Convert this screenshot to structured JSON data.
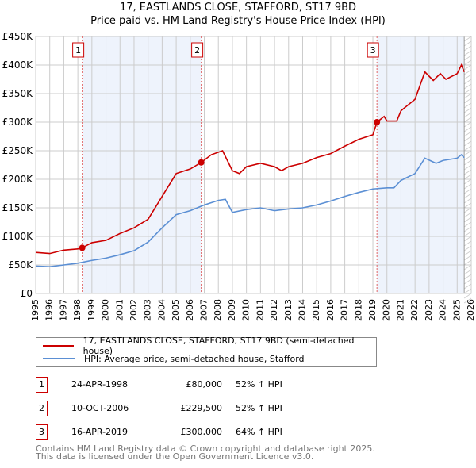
{
  "chart_data": {
    "type": "line",
    "title": "17, EASTLANDS CLOSE, STAFFORD, ST17 9BD",
    "subtitle": "Price paid vs. HM Land Registry's House Price Index (HPI)",
    "xlim": [
      1995,
      2026
    ],
    "ylim": [
      0,
      450000
    ],
    "x_ticks": [
      "1995",
      "1996",
      "1997",
      "1998",
      "1999",
      "2000",
      "2001",
      "2002",
      "2003",
      "2004",
      "2005",
      "2006",
      "2007",
      "2008",
      "2009",
      "2010",
      "2011",
      "2012",
      "2013",
      "2014",
      "2015",
      "2016",
      "2017",
      "2018",
      "2019",
      "2020",
      "2021",
      "2022",
      "2023",
      "2024",
      "2025",
      "2026"
    ],
    "y_ticks": [
      {
        "v": 0,
        "l": "£0"
      },
      {
        "v": 50000,
        "l": "£50K"
      },
      {
        "v": 100000,
        "l": "£100K"
      },
      {
        "v": 150000,
        "l": "£150K"
      },
      {
        "v": 200000,
        "l": "£200K"
      },
      {
        "v": 250000,
        "l": "£250K"
      },
      {
        "v": 300000,
        "l": "£300K"
      },
      {
        "v": 350000,
        "l": "£350K"
      },
      {
        "v": 400000,
        "l": "£400K"
      },
      {
        "v": 450000,
        "l": "£450K"
      }
    ],
    "grid": true,
    "series": [
      {
        "name": "17, EASTLANDS CLOSE, STAFFORD, ST17 9BD (semi-detached house)",
        "color": "#cc0000",
        "x": [
          1995,
          1996,
          1997,
          1998,
          1998.31,
          1999,
          2000,
          2001,
          2002,
          2003,
          2004,
          2005,
          2006,
          2006.78,
          2007.5,
          2008.3,
          2009,
          2009.5,
          2010,
          2011,
          2012,
          2012.5,
          2013,
          2014,
          2015,
          2016,
          2017,
          2018,
          2019,
          2019.29,
          2019.8,
          2020,
          2020.7,
          2021,
          2022,
          2022.7,
          2023.3,
          2023.8,
          2024.2,
          2025,
          2025.3,
          2025.5
        ],
        "y": [
          72000,
          70000,
          76000,
          78000,
          80000,
          89000,
          93000,
          105000,
          115000,
          130000,
          170000,
          210000,
          218000,
          229500,
          243000,
          250000,
          215000,
          210000,
          222000,
          228000,
          222000,
          215000,
          222000,
          228000,
          238000,
          245000,
          258000,
          270000,
          278000,
          300000,
          310000,
          302000,
          302000,
          320000,
          340000,
          388000,
          373000,
          385000,
          375000,
          385000,
          400000,
          388000
        ]
      },
      {
        "name": "HPI: Average price, semi-detached house, Stafford",
        "color": "#5b8fd4",
        "x": [
          1995,
          1996,
          1997,
          1998,
          1999,
          2000,
          2001,
          2002,
          2003,
          2004,
          2005,
          2006,
          2007,
          2008,
          2008.5,
          2009,
          2010,
          2011,
          2012,
          2013,
          2014,
          2015,
          2016,
          2017,
          2018,
          2019,
          2020,
          2020.5,
          2021,
          2022,
          2022.7,
          2023.5,
          2024,
          2025,
          2025.3,
          2025.5
        ],
        "y": [
          48000,
          47000,
          50000,
          53000,
          58000,
          62000,
          68000,
          75000,
          90000,
          115000,
          138000,
          145000,
          155000,
          163000,
          165000,
          142000,
          147000,
          150000,
          145000,
          148000,
          150000,
          155000,
          162000,
          170000,
          177000,
          183000,
          185000,
          185000,
          198000,
          210000,
          237000,
          228000,
          233000,
          237000,
          243000,
          238000
        ]
      }
    ],
    "sales": [
      {
        "label": "1",
        "x": 1998.31,
        "y": 80000
      },
      {
        "label": "2",
        "x": 2006.78,
        "y": 229500
      },
      {
        "label": "3",
        "x": 2019.29,
        "y": 300000
      }
    ],
    "shaded": [
      [
        1998.31,
        2006.78
      ],
      [
        2019.29,
        2025.5
      ]
    ],
    "data_end": 2025.5,
    "legend_position": "below"
  },
  "table": [
    {
      "n": "1",
      "date": "24-APR-1998",
      "price": "£80,000",
      "hpi": "52% ↑ HPI"
    },
    {
      "n": "2",
      "date": "10-OCT-2006",
      "price": "£229,500",
      "hpi": "52% ↑ HPI"
    },
    {
      "n": "3",
      "date": "16-APR-2019",
      "price": "£300,000",
      "hpi": "64% ↑ HPI"
    }
  ],
  "footer": {
    "line1": "Contains HM Land Registry data © Crown copyright and database right 2025.",
    "line2": "This data is licensed under the Open Government Licence v3.0."
  }
}
